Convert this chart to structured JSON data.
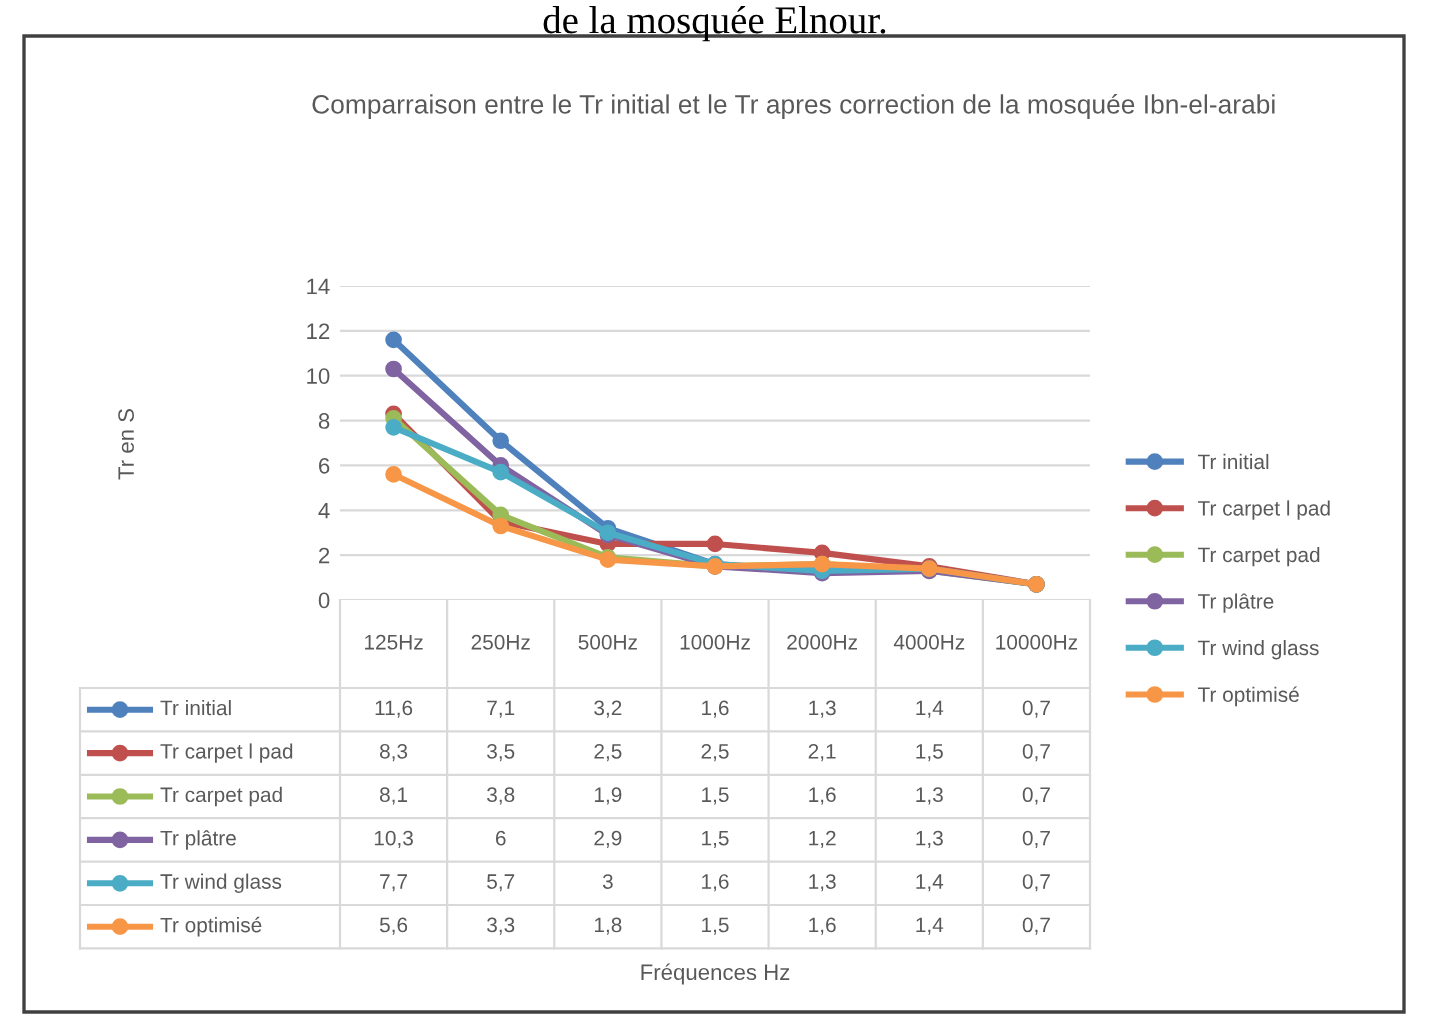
{
  "chart_data": {
    "type": "line",
    "title": "Comparraison entre le Tr initial et le Tr apres correction de la mosquée Ibn-el-arabi",
    "subtitle": "de la mosquée Elnour.",
    "annotations": [
      "Tr en S",
      "Fréquences Hz"
    ],
    "categories": [
      "125Hz",
      "250Hz",
      "500Hz",
      "1000Hz",
      "2000Hz",
      "4000Hz",
      "10000Hz"
    ],
    "series": [
      {
        "name": "Tr initial",
        "color": "#4f81bd",
        "values": [
          11.6,
          7.1,
          3.2,
          1.6,
          1.3,
          1.4,
          0.7
        ],
        "value_labels": [
          "11,6",
          "7,1",
          "3,2",
          "1,6",
          "1,3",
          "1,4",
          "0,7"
        ]
      },
      {
        "name": "Tr carpet l pad",
        "color": "#c0504d",
        "values": [
          8.3,
          3.5,
          2.5,
          2.5,
          2.1,
          1.5,
          0.7
        ],
        "value_labels": [
          "8,3",
          "3,5",
          "2,5",
          "2,5",
          "2,1",
          "1,5",
          "0,7"
        ]
      },
      {
        "name": "Tr carpet pad",
        "color": "#9bbb59",
        "values": [
          8.1,
          3.8,
          1.9,
          1.5,
          1.6,
          1.3,
          0.7
        ],
        "value_labels": [
          "8,1",
          "3,8",
          "1,9",
          "1,5",
          "1,6",
          "1,3",
          "0,7"
        ]
      },
      {
        "name": "Tr plâtre",
        "color": "#8064a2",
        "values": [
          10.3,
          6,
          2.9,
          1.5,
          1.2,
          1.3,
          0.7
        ],
        "value_labels": [
          "10,3",
          "6",
          "2,9",
          "1,5",
          "1,2",
          "1,3",
          "0,7"
        ]
      },
      {
        "name": "Tr wind glass",
        "color": "#4bacc6",
        "values": [
          7.7,
          5.7,
          3,
          1.6,
          1.3,
          1.4,
          0.7
        ],
        "value_labels": [
          "7,7",
          "5,7",
          "3",
          "1,6",
          "1,3",
          "1,4",
          "0,7"
        ]
      },
      {
        "name": "Tr optimisé",
        "color": "#f79646",
        "values": [
          5.6,
          3.3,
          1.8,
          1.5,
          1.6,
          1.4,
          0.7
        ],
        "value_labels": [
          "5,6",
          "3,3",
          "1,8",
          "1,5",
          "1,6",
          "1,4",
          "0,7"
        ]
      }
    ],
    "ylim": [
      0,
      14
    ],
    "yticks": [
      0,
      2,
      4,
      6,
      8,
      10,
      12,
      14
    ],
    "grid": "y",
    "legend": "right",
    "marker": "circle",
    "line_style": "solid"
  }
}
